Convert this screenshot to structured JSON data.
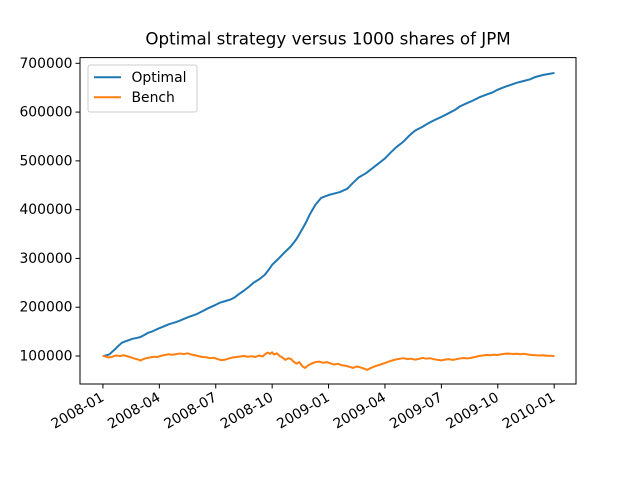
{
  "figure": {
    "title": "Optimal strategy versus 1000 shares of JPM",
    "background": "#ffffff"
  },
  "legend": {
    "items": [
      {
        "label": "Optimal",
        "color": "#1f77b4"
      },
      {
        "label": "Bench",
        "color": "#ff7f0e"
      }
    ]
  },
  "chart_data": {
    "type": "line",
    "title": "Optimal strategy versus 1000 shares of JPM",
    "xlabel": "",
    "ylabel": "",
    "grid": false,
    "legend_position": "upper left",
    "x_unit": "months since 2008-01-01",
    "xlim_months": [
      -1.22,
      25.16
    ],
    "ylim": [
      42600,
      711700
    ],
    "x_ticks": [
      {
        "m": 0,
        "label": "2008-01"
      },
      {
        "m": 3,
        "label": "2008-04"
      },
      {
        "m": 6,
        "label": "2008-07"
      },
      {
        "m": 9,
        "label": "2008-10"
      },
      {
        "m": 12,
        "label": "2009-01"
      },
      {
        "m": 15,
        "label": "2009-04"
      },
      {
        "m": 18,
        "label": "2009-07"
      },
      {
        "m": 21,
        "label": "2009-10"
      },
      {
        "m": 24,
        "label": "2010-01"
      }
    ],
    "y_ticks": [
      100000,
      200000,
      300000,
      400000,
      500000,
      600000,
      700000
    ],
    "series": [
      {
        "name": "Optimal",
        "color": "#1f77b4",
        "points": [
          [
            0.03,
            100000
          ],
          [
            0.2,
            101500
          ],
          [
            0.35,
            103500
          ],
          [
            0.5,
            109000
          ],
          [
            0.65,
            114000
          ],
          [
            0.8,
            120000
          ],
          [
            1.0,
            127000
          ],
          [
            1.2,
            130000
          ],
          [
            1.4,
            133000
          ],
          [
            1.6,
            135500
          ],
          [
            1.8,
            137000
          ],
          [
            2.0,
            139000
          ],
          [
            2.2,
            143000
          ],
          [
            2.4,
            147500
          ],
          [
            2.6,
            150000
          ],
          [
            2.8,
            153500
          ],
          [
            3.0,
            157000
          ],
          [
            3.2,
            160000
          ],
          [
            3.5,
            165000
          ],
          [
            3.8,
            168500
          ],
          [
            4.0,
            171000
          ],
          [
            4.3,
            176000
          ],
          [
            4.6,
            180500
          ],
          [
            5.0,
            186000
          ],
          [
            5.3,
            192000
          ],
          [
            5.6,
            198000
          ],
          [
            6.0,
            205000
          ],
          [
            6.2,
            209000
          ],
          [
            6.5,
            212500
          ],
          [
            6.8,
            216000
          ],
          [
            7.0,
            220000
          ],
          [
            7.2,
            226000
          ],
          [
            7.5,
            234000
          ],
          [
            7.8,
            243000
          ],
          [
            8.0,
            250000
          ],
          [
            8.3,
            257000
          ],
          [
            8.6,
            266000
          ],
          [
            8.8,
            276000
          ],
          [
            9.0,
            287000
          ],
          [
            9.3,
            298000
          ],
          [
            9.6,
            310000
          ],
          [
            10.0,
            325000
          ],
          [
            10.3,
            340000
          ],
          [
            10.6,
            360000
          ],
          [
            10.8,
            374000
          ],
          [
            11.0,
            390000
          ],
          [
            11.3,
            410000
          ],
          [
            11.6,
            424000
          ],
          [
            12.0,
            430000
          ],
          [
            12.3,
            433000
          ],
          [
            12.6,
            436000
          ],
          [
            13.0,
            443000
          ],
          [
            13.3,
            455000
          ],
          [
            13.6,
            466000
          ],
          [
            14.0,
            475000
          ],
          [
            14.3,
            484000
          ],
          [
            14.6,
            493000
          ],
          [
            15.0,
            505000
          ],
          [
            15.3,
            517000
          ],
          [
            15.6,
            528000
          ],
          [
            16.0,
            540000
          ],
          [
            16.3,
            552000
          ],
          [
            16.6,
            562000
          ],
          [
            17.0,
            570000
          ],
          [
            17.3,
            577000
          ],
          [
            17.6,
            583000
          ],
          [
            18.0,
            590000
          ],
          [
            18.4,
            598000
          ],
          [
            18.7,
            604000
          ],
          [
            19.0,
            612000
          ],
          [
            19.4,
            619000
          ],
          [
            19.7,
            624000
          ],
          [
            20.0,
            630000
          ],
          [
            20.4,
            636000
          ],
          [
            20.7,
            640000
          ],
          [
            21.0,
            646000
          ],
          [
            21.4,
            652000
          ],
          [
            21.7,
            656000
          ],
          [
            22.0,
            660000
          ],
          [
            22.4,
            664000
          ],
          [
            22.7,
            667000
          ],
          [
            23.0,
            672000
          ],
          [
            23.4,
            676000
          ],
          [
            23.7,
            678000
          ],
          [
            23.97,
            680000
          ]
        ]
      },
      {
        "name": "Bench",
        "color": "#ff7f0e",
        "points": [
          [
            0.03,
            100000
          ],
          [
            0.15,
            98500
          ],
          [
            0.3,
            97000
          ],
          [
            0.5,
            98500
          ],
          [
            0.7,
            101000
          ],
          [
            0.9,
            100000
          ],
          [
            1.1,
            101500
          ],
          [
            1.3,
            99500
          ],
          [
            1.5,
            97000
          ],
          [
            1.7,
            94500
          ],
          [
            1.9,
            92500
          ],
          [
            2.0,
            90500
          ],
          [
            2.1,
            93000
          ],
          [
            2.3,
            95500
          ],
          [
            2.5,
            97000
          ],
          [
            2.7,
            98500
          ],
          [
            2.9,
            98000
          ],
          [
            3.1,
            100500
          ],
          [
            3.3,
            102000
          ],
          [
            3.5,
            103500
          ],
          [
            3.7,
            102500
          ],
          [
            3.9,
            104000
          ],
          [
            4.1,
            105000
          ],
          [
            4.3,
            104000
          ],
          [
            4.5,
            105500
          ],
          [
            4.7,
            103000
          ],
          [
            4.9,
            101500
          ],
          [
            5.1,
            99500
          ],
          [
            5.3,
            98000
          ],
          [
            5.5,
            97500
          ],
          [
            5.7,
            95500
          ],
          [
            5.9,
            96500
          ],
          [
            6.1,
            93500
          ],
          [
            6.3,
            91500
          ],
          [
            6.5,
            92500
          ],
          [
            6.7,
            95000
          ],
          [
            6.9,
            97000
          ],
          [
            7.1,
            98000
          ],
          [
            7.3,
            99000
          ],
          [
            7.5,
            100000
          ],
          [
            7.7,
            98500
          ],
          [
            7.9,
            99500
          ],
          [
            8.1,
            98000
          ],
          [
            8.3,
            101000
          ],
          [
            8.5,
            99000
          ],
          [
            8.6,
            103000
          ],
          [
            8.75,
            107000
          ],
          [
            8.9,
            104500
          ],
          [
            9.0,
            107500
          ],
          [
            9.1,
            103000
          ],
          [
            9.25,
            105500
          ],
          [
            9.4,
            100000
          ],
          [
            9.55,
            97000
          ],
          [
            9.7,
            92000
          ],
          [
            9.85,
            95500
          ],
          [
            10.0,
            94000
          ],
          [
            10.15,
            88000
          ],
          [
            10.3,
            84500
          ],
          [
            10.45,
            87500
          ],
          [
            10.6,
            79000
          ],
          [
            10.75,
            75500
          ],
          [
            10.9,
            80500
          ],
          [
            11.1,
            84500
          ],
          [
            11.3,
            87500
          ],
          [
            11.5,
            88500
          ],
          [
            11.7,
            86000
          ],
          [
            11.9,
            87500
          ],
          [
            12.1,
            85000
          ],
          [
            12.3,
            82500
          ],
          [
            12.5,
            84000
          ],
          [
            12.7,
            81000
          ],
          [
            12.9,
            80000
          ],
          [
            13.1,
            78000
          ],
          [
            13.3,
            75500
          ],
          [
            13.5,
            78500
          ],
          [
            13.7,
            76500
          ],
          [
            13.9,
            74000
          ],
          [
            14.05,
            71500
          ],
          [
            14.2,
            74500
          ],
          [
            14.4,
            78000
          ],
          [
            14.6,
            80500
          ],
          [
            14.8,
            83000
          ],
          [
            15.0,
            85500
          ],
          [
            15.2,
            88500
          ],
          [
            15.4,
            91000
          ],
          [
            15.6,
            93000
          ],
          [
            15.8,
            94500
          ],
          [
            16.0,
            95500
          ],
          [
            16.2,
            93500
          ],
          [
            16.4,
            94500
          ],
          [
            16.6,
            92500
          ],
          [
            16.8,
            94000
          ],
          [
            17.0,
            96000
          ],
          [
            17.2,
            94500
          ],
          [
            17.4,
            95500
          ],
          [
            17.6,
            93500
          ],
          [
            17.8,
            92000
          ],
          [
            18.0,
            91000
          ],
          [
            18.2,
            92500
          ],
          [
            18.4,
            93500
          ],
          [
            18.6,
            92000
          ],
          [
            18.8,
            93500
          ],
          [
            19.0,
            95000
          ],
          [
            19.2,
            96000
          ],
          [
            19.4,
            95000
          ],
          [
            19.6,
            96500
          ],
          [
            19.8,
            98000
          ],
          [
            20.0,
            100000
          ],
          [
            20.2,
            101000
          ],
          [
            20.4,
            102000
          ],
          [
            20.6,
            101500
          ],
          [
            20.8,
            102500
          ],
          [
            21.0,
            102000
          ],
          [
            21.2,
            103500
          ],
          [
            21.4,
            104500
          ],
          [
            21.6,
            105000
          ],
          [
            21.8,
            104000
          ],
          [
            22.0,
            104500
          ],
          [
            22.2,
            103500
          ],
          [
            22.4,
            104500
          ],
          [
            22.6,
            103000
          ],
          [
            22.8,
            102000
          ],
          [
            23.0,
            101500
          ],
          [
            23.2,
            101000
          ],
          [
            23.4,
            101500
          ],
          [
            23.6,
            100500
          ],
          [
            23.8,
            100500
          ],
          [
            23.97,
            100000
          ]
        ]
      }
    ]
  }
}
